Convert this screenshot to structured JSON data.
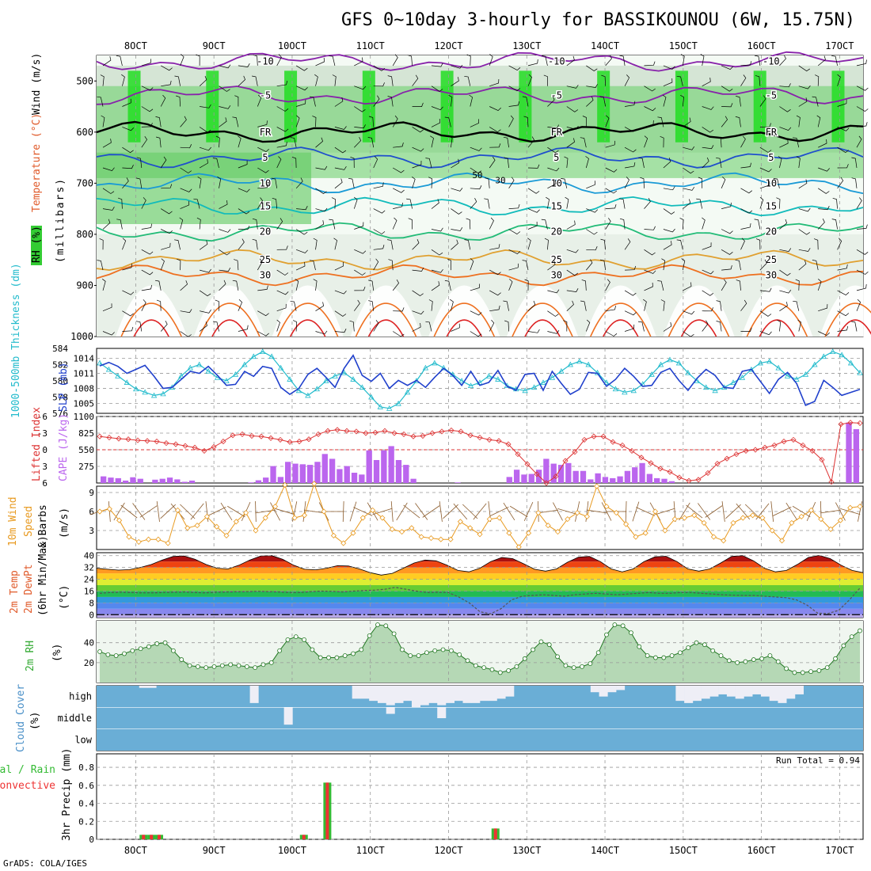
{
  "title": "GFS 0~10day 3-hourly for BASSIKOUNOU (6W, 15.75N)",
  "credit": "GrADS: COLA/IGES",
  "x_ticks": [
    "8OCT",
    "9OCT",
    "10OCT",
    "11OCT",
    "12OCT",
    "13OCT",
    "14OCT",
    "15OCT",
    "16OCT",
    "17OCT"
  ],
  "colors": {
    "rh": "#22bb22",
    "temp": "#e05a2a",
    "wind": "#000000",
    "thick": "#22bbcc",
    "slp": "#2040cc",
    "li": "#dd3333",
    "cape": "#bb66ee",
    "wind10": "#e89a20",
    "rh2m": "#33aa33",
    "cloud": "#6aaed6",
    "cloud_clear": "#eeeef6",
    "precip_total": "#33bb33",
    "precip_conv": "#ee3333"
  },
  "panels": {
    "upper": {
      "y_labels": {
        "rh": "RH (%)",
        "temp": "Temperature (°C)",
        "wind": "Wind (m/s)",
        "units": "(millibars)"
      },
      "pressure_ticks": [
        "500",
        "600",
        "700",
        "800",
        "900",
        "1000"
      ],
      "ylim": [
        1000,
        450
      ],
      "temp_contours": [
        {
          "label": "-10",
          "p": 462,
          "color": "#8822aa"
        },
        {
          "label": "-5",
          "p": 528,
          "color": "#8822aa"
        },
        {
          "label": "FR",
          "p": 600,
          "color": "#000000"
        },
        {
          "label": "5",
          "p": 650,
          "color": "#1f4fcc"
        },
        {
          "label": "10",
          "p": 700,
          "color": "#1a9ad6"
        },
        {
          "label": "15",
          "p": 745,
          "color": "#11bbbb"
        },
        {
          "label": "20",
          "p": 795,
          "color": "#22bb77"
        },
        {
          "label": "25",
          "p": 850,
          "color": "#e0a030"
        },
        {
          "label": "30",
          "p": 880,
          "color": "#ee7020"
        }
      ],
      "rh_labels": [
        "50",
        "30"
      ]
    },
    "slp": {
      "y_labels": {
        "thick": "1000-500mb Thickness (dm)",
        "slp": "SLP (mb)"
      },
      "thick_ticks": [
        "576",
        "578",
        "580",
        "582",
        "584"
      ],
      "slp_ticks": [
        "1005",
        "1008",
        "1011",
        "1014"
      ]
    },
    "cape": {
      "y_labels": {
        "li": "Lifted Index",
        "cape": "CAPE (J/kg)"
      },
      "li_ticks": [
        "-6",
        "-3",
        "0",
        "3",
        "6"
      ],
      "cape_ticks": [
        "275",
        "550",
        "825",
        "1100"
      ]
    },
    "wind10": {
      "y_labels": {
        "a": "10m Wind",
        "b": "Speed",
        "c": "& Barbs",
        "d": "(m/s)"
      },
      "ticks": [
        "3",
        "6",
        "9"
      ]
    },
    "temp2m": {
      "y_labels": {
        "a": "2m Temp",
        "b": "2m DewPt",
        "c": "(6hr Min/Max)",
        "d": "(°C)"
      },
      "ticks": [
        "0",
        "8",
        "16",
        "24",
        "32",
        "40"
      ]
    },
    "rh2m": {
      "y_labels": {
        "a": "2m RH",
        "b": "(%)"
      },
      "ticks": [
        "20",
        "40"
      ]
    },
    "cloud": {
      "y_labels": {
        "a": "Cloud Cover",
        "b": "(%)"
      },
      "levels": [
        "high",
        "middle",
        "low"
      ]
    },
    "precip": {
      "y_labels": {
        "a": "Total / Rain",
        "b": "Convective",
        "c": "3hr Precip (mm)"
      },
      "ticks": [
        "0",
        "0.2",
        "0.4",
        "0.6",
        "0.8"
      ],
      "run_total": "Run Total = 0.94"
    }
  },
  "chart_data": [
    {
      "type": "line",
      "name": "thickness",
      "ylim": [
        576,
        584
      ],
      "values": [
        582.2,
        581.4,
        580.6,
        579.8,
        579.0,
        578.6,
        578.2,
        578.4,
        579.2,
        580.6,
        581.6,
        582.0,
        581.2,
        580.4,
        580.0,
        580.8,
        582.0,
        583.0,
        583.6,
        583.0,
        581.6,
        580.2,
        578.8,
        578.2,
        579.0,
        580.0,
        580.6,
        581.0,
        580.2,
        579.2,
        578.0,
        576.8,
        576.6,
        577.2,
        578.6,
        580.0,
        581.6,
        582.2,
        581.6,
        580.8,
        580.0,
        579.4,
        579.8,
        580.6,
        580.2,
        579.4,
        579.0,
        578.8,
        579.2,
        579.8,
        580.4,
        581.2,
        582.0,
        582.4,
        582.0,
        581.0,
        579.8,
        579.0,
        578.6,
        578.8,
        579.6,
        580.8,
        582.0,
        582.6,
        582.2,
        581.0,
        580.0,
        579.2,
        578.8,
        579.2,
        579.8,
        580.4,
        581.4,
        582.2,
        582.4,
        581.6,
        580.6,
        580.2,
        580.8,
        582.0,
        583.0,
        583.6,
        583.2,
        582.2,
        581.0
      ]
    },
    {
      "type": "line",
      "name": "slp",
      "ylim": [
        1003,
        1016
      ],
      "values": [
        1012.5,
        1013.2,
        1012.4,
        1011.0,
        1011.8,
        1012.6,
        1010.4,
        1008.0,
        1008.2,
        1009.8,
        1011.4,
        1011.0,
        1012.4,
        1010.6,
        1008.6,
        1008.8,
        1011.4,
        1010.4,
        1012.4,
        1012.0,
        1008.2,
        1006.8,
        1008.0,
        1010.8,
        1012.0,
        1010.2,
        1008.2,
        1012.0,
        1014.6,
        1010.6,
        1009.4,
        1011.0,
        1008.0,
        1009.6,
        1008.6,
        1009.6,
        1008.2,
        1010.2,
        1012.0,
        1010.6,
        1008.6,
        1011.4,
        1008.6,
        1009.2,
        1011.6,
        1008.4,
        1007.6,
        1010.8,
        1011.0,
        1007.6,
        1011.4,
        1009.0,
        1006.8,
        1007.8,
        1011.2,
        1011.0,
        1008.4,
        1009.8,
        1012.0,
        1010.4,
        1008.4,
        1008.6,
        1011.2,
        1012.0,
        1009.6,
        1007.6,
        1010.0,
        1011.8,
        1010.6,
        1008.2,
        1008.0,
        1011.4,
        1011.8,
        1009.4,
        1007.0,
        1009.8,
        1011.2,
        1009.0,
        1004.6,
        1005.4,
        1009.6,
        1008.2,
        1006.6,
        1007.2,
        1007.8
      ]
    },
    {
      "type": "bar",
      "name": "cape",
      "ylim": [
        0,
        1100
      ],
      "values": [
        110,
        90,
        80,
        40,
        95,
        70,
        0,
        55,
        70,
        90,
        60,
        20,
        40,
        0,
        0,
        0,
        0,
        0,
        0,
        0,
        10,
        45,
        90,
        280,
        100,
        350,
        320,
        310,
        300,
        350,
        480,
        400,
        230,
        280,
        170,
        140,
        540,
        380,
        540,
        610,
        380,
        300,
        70,
        0,
        0,
        0,
        0,
        0,
        10,
        0,
        0,
        0,
        0,
        0,
        0,
        100,
        220,
        140,
        150,
        220,
        400,
        320,
        300,
        330,
        200,
        200,
        60,
        160,
        100,
        80,
        110,
        200,
        260,
        330,
        150,
        80,
        70,
        30,
        0,
        0,
        0,
        0,
        0,
        0,
        0,
        0,
        0,
        0,
        0,
        0,
        0,
        0,
        0,
        0,
        0,
        0,
        0,
        0,
        0,
        0,
        0,
        1000,
        890
      ]
    },
    {
      "type": "line",
      "name": "lifted_index",
      "ylim": [
        6,
        -6
      ],
      "values": [
        -2.4,
        -2.2,
        -2.0,
        -1.9,
        -1.7,
        -1.6,
        -1.5,
        -1.2,
        -1.0,
        -0.7,
        -0.4,
        0.2,
        -0.5,
        -1.5,
        -2.6,
        -2.8,
        -2.5,
        -2.4,
        -2.1,
        -1.8,
        -1.4,
        -1.5,
        -1.9,
        -2.8,
        -3.4,
        -3.6,
        -3.4,
        -3.3,
        -3.0,
        -3.1,
        -3.4,
        -3.0,
        -2.8,
        -2.4,
        -2.5,
        -3.0,
        -3.3,
        -3.5,
        -3.3,
        -2.6,
        -2.2,
        -1.8,
        -1.6,
        -1.0,
        0.8,
        2.6,
        4.4,
        6.0,
        4.8,
        2.0,
        0.4,
        -1.8,
        -2.4,
        -2.4,
        -1.4,
        -0.8,
        0.2,
        1.4,
        2.4,
        3.4,
        4.0,
        5.0,
        5.6,
        5.4,
        4.2,
        2.5,
        1.6,
        0.8,
        0.2,
        0.0,
        -0.4,
        -0.8,
        -1.5,
        -1.8,
        -0.8,
        0.2,
        1.8,
        5.8,
        -4.6,
        -4.9,
        -4.8
      ]
    },
    {
      "type": "line",
      "name": "wind10_speed",
      "ylim": [
        0,
        10
      ],
      "values": [
        6.0,
        6.4,
        4.6,
        2.0,
        1.2,
        1.6,
        1.6,
        1.0,
        6.2,
        3.4,
        3.8,
        5.2,
        3.6,
        2.2,
        4.4,
        5.8,
        3.0,
        5.0,
        6.8,
        10.2,
        5.0,
        5.4,
        10.4,
        6.0,
        2.2,
        1.0,
        2.6,
        5.0,
        6.2,
        5.0,
        3.2,
        2.8,
        3.4,
        2.0,
        1.8,
        1.6,
        1.6,
        4.4,
        3.4,
        2.4,
        4.8,
        5.0,
        2.6,
        0.4,
        2.6,
        5.8,
        3.8,
        2.8,
        4.8,
        5.8,
        5.2,
        10.0,
        6.8,
        5.8,
        4.0,
        2.0,
        2.6,
        6.0,
        3.0,
        4.8,
        5.0,
        5.4,
        4.2,
        2.0,
        1.4,
        4.2,
        5.0,
        5.4,
        5.0,
        3.0,
        1.4,
        4.2,
        5.2,
        6.2,
        4.8,
        3.2,
        4.6,
        6.6,
        6.8
      ]
    },
    {
      "type": "area",
      "name": "temp2m",
      "ylim": [
        -2,
        42
      ],
      "values": [
        31.5,
        30.8,
        30.2,
        30.5,
        32.0,
        34.0,
        37.0,
        39.5,
        39.8,
        37.5,
        34.0,
        31.5,
        31.0,
        33.5,
        37.0,
        39.8,
        40.0,
        37.5,
        33.5,
        30.8,
        30.4,
        31.5,
        33.2,
        33.0,
        31.0,
        28.5,
        26.8,
        28.0,
        31.5,
        35.0,
        37.0,
        36.5,
        33.5,
        30.0,
        29.0,
        31.5,
        36.0,
        38.8,
        38.0,
        34.5,
        30.8,
        29.5,
        31.0,
        35.5,
        39.0,
        39.5,
        36.0,
        31.0,
        29.0,
        31.0,
        36.0,
        39.2,
        39.6,
        36.0,
        31.0,
        29.5,
        31.0,
        35.0,
        39.5,
        40.0,
        36.5,
        31.5,
        29.0,
        30.0,
        34.0,
        38.8,
        40.2,
        38.0,
        33.5,
        30.0,
        28.5
      ]
    },
    {
      "type": "line",
      "name": "dewpt2m",
      "ylim": [
        -2,
        42
      ],
      "values": [
        14.5,
        15.0,
        15.2,
        15.0,
        14.8,
        14.8,
        15.0,
        15.2,
        15.4,
        15.0,
        14.8,
        15.2,
        15.4,
        15.5,
        15.6,
        15.8,
        15.6,
        15.4,
        15.0,
        15.0,
        15.6,
        16.0,
        15.8,
        15.4,
        16.0,
        16.4,
        16.6,
        17.2,
        18.5,
        17.2,
        16.0,
        15.0,
        15.2,
        15.0,
        12.0,
        8.0,
        2.0,
        0.5,
        4.0,
        10.0,
        12.5,
        13.0,
        13.5,
        13.0,
        12.5,
        13.5,
        14.0,
        14.5,
        14.0,
        13.5,
        14.0,
        14.5,
        15.0,
        14.5,
        14.5,
        15.0,
        15.0,
        14.5,
        14.0,
        13.5,
        13.2,
        13.0,
        13.0,
        12.5,
        12.0,
        11.5,
        10.0,
        6.5,
        1.0,
        0.8,
        3.0,
        10.0,
        18.0
      ]
    },
    {
      "type": "area",
      "name": "rh2m",
      "ylim": [
        0,
        62
      ],
      "values": [
        31,
        28,
        27,
        29,
        32,
        34,
        36,
        39,
        40,
        32,
        23,
        17,
        16,
        15,
        16,
        17,
        18,
        17,
        16,
        15,
        18,
        20,
        32,
        43,
        46,
        43,
        33,
        25,
        25,
        25,
        27,
        29,
        33,
        47,
        58,
        57,
        49,
        33,
        27,
        27,
        30,
        32,
        33,
        32,
        28,
        22,
        17,
        15,
        13,
        10,
        12,
        16,
        24,
        33,
        41,
        38,
        26,
        17,
        15,
        16,
        19,
        30,
        48,
        58,
        57,
        50,
        36,
        27,
        25,
        25,
        27,
        30,
        35,
        40,
        38,
        32,
        27,
        22,
        20,
        21,
        23,
        24,
        27,
        21,
        14,
        10,
        10,
        11,
        12,
        15,
        24,
        37,
        46,
        52
      ]
    },
    {
      "type": "bar",
      "name": "cloud_cover",
      "levels": [
        "high",
        "middle",
        "low"
      ],
      "high": [
        0,
        0,
        0,
        0,
        0,
        10,
        10,
        0,
        0,
        0,
        0,
        0,
        0,
        0,
        0,
        0,
        0,
        0,
        80,
        0,
        0,
        0,
        0,
        0,
        0,
        0,
        0,
        0,
        0,
        0,
        60,
        60,
        70,
        80,
        90,
        80,
        70,
        100,
        90,
        80,
        90,
        80,
        70,
        80,
        80,
        70,
        70,
        60,
        50,
        0,
        0,
        0,
        0,
        0,
        0,
        0,
        0,
        0,
        30,
        50,
        30,
        20,
        0,
        0,
        0,
        0,
        0,
        0,
        70,
        80,
        70,
        60,
        50,
        40,
        50,
        60,
        50,
        40,
        50,
        70,
        80,
        60,
        40,
        0,
        0,
        0,
        0,
        0,
        0,
        0
      ],
      "middle": [
        0,
        0,
        0,
        0,
        0,
        0,
        0,
        0,
        0,
        0,
        0,
        0,
        0,
        0,
        0,
        0,
        0,
        0,
        0,
        0,
        0,
        0,
        80,
        0,
        0,
        0,
        0,
        0,
        0,
        0,
        0,
        0,
        0,
        0,
        30,
        0,
        0,
        0,
        0,
        0,
        50,
        0,
        0,
        0,
        0,
        0,
        0,
        0,
        0,
        0,
        0,
        0,
        0,
        0,
        0,
        0,
        0,
        0,
        0,
        0,
        0,
        0,
        0,
        0,
        0,
        0,
        0,
        0,
        0,
        0,
        0,
        0,
        0,
        0,
        0,
        0,
        0,
        0,
        0,
        0,
        0,
        0,
        0,
        0,
        0,
        0,
        0,
        0,
        0,
        0
      ],
      "low": [
        0,
        0,
        0,
        0,
        0,
        0,
        0,
        0,
        0,
        0,
        0,
        0,
        0,
        0,
        0,
        0,
        0,
        0,
        0,
        0,
        0,
        0,
        0,
        0,
        0,
        0,
        0,
        0,
        0,
        0,
        0,
        0,
        0,
        0,
        0,
        0,
        0,
        0,
        0,
        0,
        0,
        0,
        0,
        0,
        0,
        0,
        0,
        0,
        0,
        0,
        0,
        0,
        0,
        0,
        0,
        0,
        0,
        0,
        0,
        0,
        0,
        0,
        0,
        0,
        0,
        0,
        0,
        0,
        0,
        0,
        0,
        0,
        0,
        0,
        0,
        0,
        0,
        0,
        0,
        0,
        0,
        0,
        0,
        0,
        0,
        0,
        0,
        0,
        0,
        0
      ]
    },
    {
      "type": "bar",
      "name": "precip_3hr",
      "ylim": [
        0,
        0.95
      ],
      "run_total": 0.94,
      "bars": [
        {
          "x": 8.1,
          "total": 0.05,
          "conv": 0.05
        },
        {
          "x": 8.2,
          "total": 0.05,
          "conv": 0.05
        },
        {
          "x": 8.3,
          "total": 0.05,
          "conv": 0.05
        },
        {
          "x": 10.15,
          "total": 0.05,
          "conv": 0.05
        },
        {
          "x": 10.45,
          "total": 0.63,
          "conv": 0.63
        },
        {
          "x": 12.6,
          "total": 0.12,
          "conv": 0.12
        }
      ]
    }
  ]
}
